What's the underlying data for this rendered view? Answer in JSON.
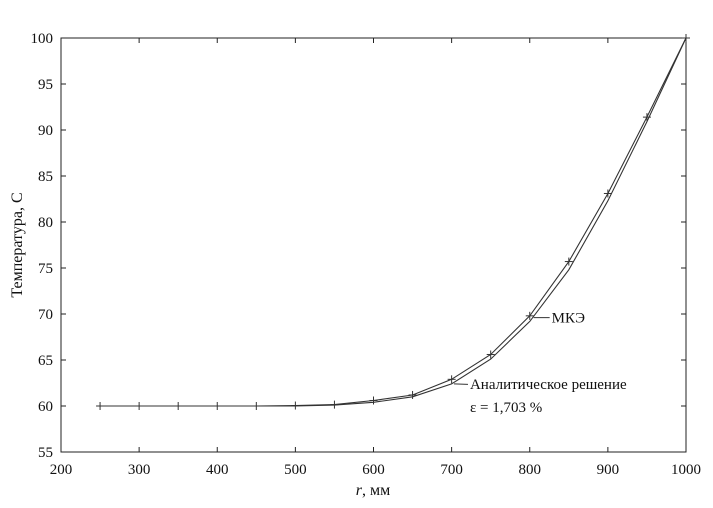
{
  "chart_data": {
    "type": "line",
    "title": "",
    "xlabel_var": "r",
    "xlabel_unit": ", мм",
    "ylabel": "Температура, С",
    "xlim": [
      200,
      1000
    ],
    "ylim": [
      55,
      100
    ],
    "xticks": [
      200,
      300,
      400,
      500,
      600,
      700,
      800,
      900,
      1000
    ],
    "yticks": [
      55,
      60,
      65,
      70,
      75,
      80,
      85,
      90,
      95,
      100
    ],
    "grid": false,
    "line_color": "#333333",
    "series": [
      {
        "name": "МКЭ",
        "marker": "plus",
        "x": [
          250,
          300,
          350,
          400,
          450,
          500,
          550,
          600,
          650,
          700,
          750,
          800,
          850,
          900,
          950,
          1000
        ],
        "y": [
          60.0,
          60.0,
          60.0,
          60.0,
          60.0,
          60.05,
          60.15,
          60.6,
          61.2,
          62.9,
          65.6,
          69.8,
          75.7,
          83.1,
          91.4,
          100.0
        ]
      },
      {
        "name": "Аналитическое решение",
        "marker": "none",
        "x": [
          250,
          300,
          350,
          400,
          450,
          500,
          550,
          600,
          650,
          700,
          750,
          800,
          850,
          900,
          950,
          1000
        ],
        "y": [
          60.0,
          60.0,
          60.0,
          60.0,
          60.0,
          60.0,
          60.1,
          60.4,
          61.0,
          62.4,
          65.1,
          69.2,
          74.8,
          82.3,
          90.9,
          100.0
        ]
      }
    ],
    "annotations": [
      {
        "text": "МКЭ",
        "series": 0,
        "x": 805,
        "y": 69.6
      },
      {
        "text": "Аналитическое решение",
        "series": 1,
        "x": 703,
        "y": 62.4
      },
      {
        "text": "ε = 1,703 %",
        "x": 703,
        "y": 62.4
      }
    ]
  }
}
